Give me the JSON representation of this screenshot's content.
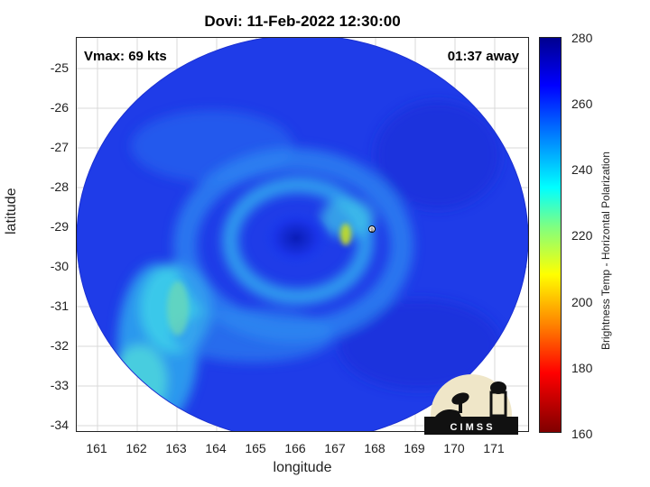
{
  "title": "Dovi: 11-Feb-2022 12:30:00",
  "vmax_label": "Vmax: 69 kts",
  "away_label": "01:37 away",
  "xlabel": "longitude",
  "ylabel": "latitude",
  "colorbar": {
    "label": "Brightness Temp - Horizontal Polarization",
    "ticks": [
      "280",
      "260",
      "240",
      "220",
      "200",
      "180",
      "160"
    ],
    "colors": [
      "#800000",
      "#ff0000",
      "#ffff00",
      "#00ffff",
      "#0000ff",
      "#00008f"
    ]
  },
  "map": {
    "yticks": [
      "-25",
      "-26",
      "-27",
      "-28",
      "-29",
      "-30",
      "-31",
      "-32",
      "-33",
      "-34"
    ],
    "xticks": [
      "161",
      "162",
      "163",
      "164",
      "165",
      "166",
      "167",
      "168",
      "169",
      "170",
      "171"
    ],
    "storm_center_marker": "9"
  },
  "logo_text": "C I M S S"
}
